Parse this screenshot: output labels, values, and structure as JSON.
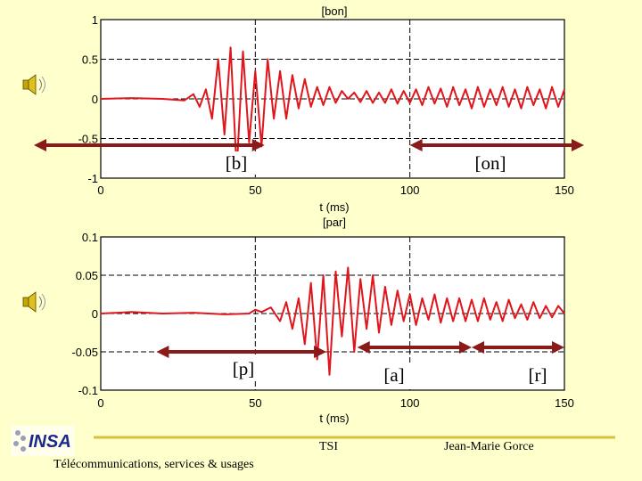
{
  "chart_data": [
    {
      "type": "line",
      "title": "[bon]",
      "xlabel": "t (ms)",
      "ylabel": "",
      "xlim": [
        0,
        150
      ],
      "ylim": [
        -1,
        1
      ],
      "x_ticks": [
        0,
        50,
        100,
        150
      ],
      "y_ticks": [
        1,
        0.5,
        0,
        -0.5,
        -1
      ],
      "x_tick_labels": [
        "0",
        "50",
        "100",
        "150"
      ],
      "y_tick_labels": [
        "1",
        "0.5",
        "0",
        "-0.5",
        "-1"
      ],
      "grid": true,
      "series": [
        {
          "name": "waveform",
          "color": "#e0161c",
          "x": [
            0,
            10,
            20,
            27,
            30,
            32,
            34,
            36,
            38,
            40,
            42,
            44,
            46,
            48,
            50,
            52,
            54,
            56,
            58,
            60,
            62,
            64,
            66,
            68,
            70,
            72,
            74,
            76,
            78,
            80,
            82,
            84,
            86,
            88,
            90,
            92,
            94,
            96,
            98,
            100,
            102,
            104,
            106,
            108,
            110,
            112,
            114,
            116,
            118,
            120,
            122,
            124,
            126,
            128,
            130,
            132,
            134,
            136,
            138,
            140,
            142,
            144,
            146,
            148,
            150
          ],
          "values": [
            0,
            0.01,
            0.0,
            -0.02,
            0.06,
            -0.1,
            0.12,
            -0.25,
            0.5,
            -0.45,
            0.65,
            -0.9,
            0.6,
            -0.55,
            0.35,
            -0.6,
            0.5,
            -0.25,
            0.35,
            -0.25,
            0.3,
            -0.12,
            0.25,
            -0.1,
            0.15,
            -0.08,
            0.15,
            -0.05,
            0.1,
            0.0,
            0.08,
            -0.04,
            0.1,
            -0.05,
            0.08,
            -0.05,
            0.12,
            -0.06,
            0.1,
            -0.05,
            0.12,
            -0.08,
            0.15,
            -0.06,
            0.13,
            -0.1,
            0.15,
            -0.08,
            0.12,
            -0.12,
            0.15,
            -0.1,
            0.12,
            -0.08,
            0.15,
            -0.1,
            0.12,
            -0.12,
            0.15,
            -0.08,
            0.12,
            -0.12,
            0.15,
            -0.1,
            0.12
          ]
        }
      ],
      "annotations": [
        {
          "label": "[b]",
          "x_range": [
            0,
            53
          ]
        },
        {
          "label": "[on]",
          "x_range": [
            100,
            150
          ]
        }
      ]
    },
    {
      "type": "line",
      "title": "[par]",
      "xlabel": "t (ms)",
      "ylabel": "",
      "xlim": [
        0,
        150
      ],
      "ylim": [
        -0.1,
        0.1
      ],
      "x_ticks": [
        0,
        50,
        100,
        150
      ],
      "y_ticks": [
        0.1,
        0.05,
        0,
        -0.05,
        -0.1
      ],
      "x_tick_labels": [
        "0",
        "50",
        "100",
        "150"
      ],
      "y_tick_labels": [
        "0.1",
        "0.05",
        "0",
        "-0.05",
        "-0.1"
      ],
      "grid": true,
      "series": [
        {
          "name": "waveform",
          "color": "#e0161c",
          "x": [
            0,
            10,
            20,
            30,
            40,
            48,
            50,
            52,
            55,
            58,
            60,
            62,
            64,
            66,
            68,
            70,
            72,
            74,
            76,
            78,
            80,
            82,
            84,
            86,
            88,
            90,
            92,
            94,
            96,
            98,
            100,
            102,
            104,
            106,
            108,
            110,
            112,
            114,
            116,
            118,
            120,
            122,
            124,
            126,
            128,
            130,
            132,
            134,
            136,
            138,
            140,
            142,
            144,
            146,
            148,
            150
          ],
          "values": [
            0,
            0.002,
            0.0,
            0.001,
            -0.001,
            0.0,
            0.005,
            0.002,
            0.008,
            -0.01,
            0.015,
            -0.02,
            0.02,
            -0.04,
            0.04,
            -0.06,
            0.05,
            -0.08,
            0.055,
            -0.03,
            0.06,
            -0.05,
            0.045,
            -0.02,
            0.05,
            -0.025,
            0.035,
            -0.015,
            0.03,
            -0.01,
            0.025,
            -0.015,
            0.02,
            -0.008,
            0.025,
            -0.012,
            0.02,
            -0.01,
            0.02,
            -0.01,
            0.018,
            -0.01,
            0.02,
            -0.008,
            0.015,
            -0.01,
            0.018,
            -0.006,
            0.012,
            -0.008,
            0.015,
            -0.006,
            0.01,
            -0.005,
            0.01,
            0.0
          ]
        }
      ],
      "annotations": [
        {
          "label": "[p]",
          "x_range": [
            18,
            73
          ]
        },
        {
          "label": "[a]",
          "x_range": [
            83,
            120
          ]
        },
        {
          "label": "[r]",
          "x_range": [
            120,
            150
          ]
        }
      ]
    }
  ],
  "footer": {
    "tsi": "TSI",
    "author": "Jean-Marie Gorce",
    "dept": "Télécommunications, services & usages",
    "logo_text": "INSA"
  },
  "icons": [
    "speaker-icon",
    "speaker-icon"
  ]
}
